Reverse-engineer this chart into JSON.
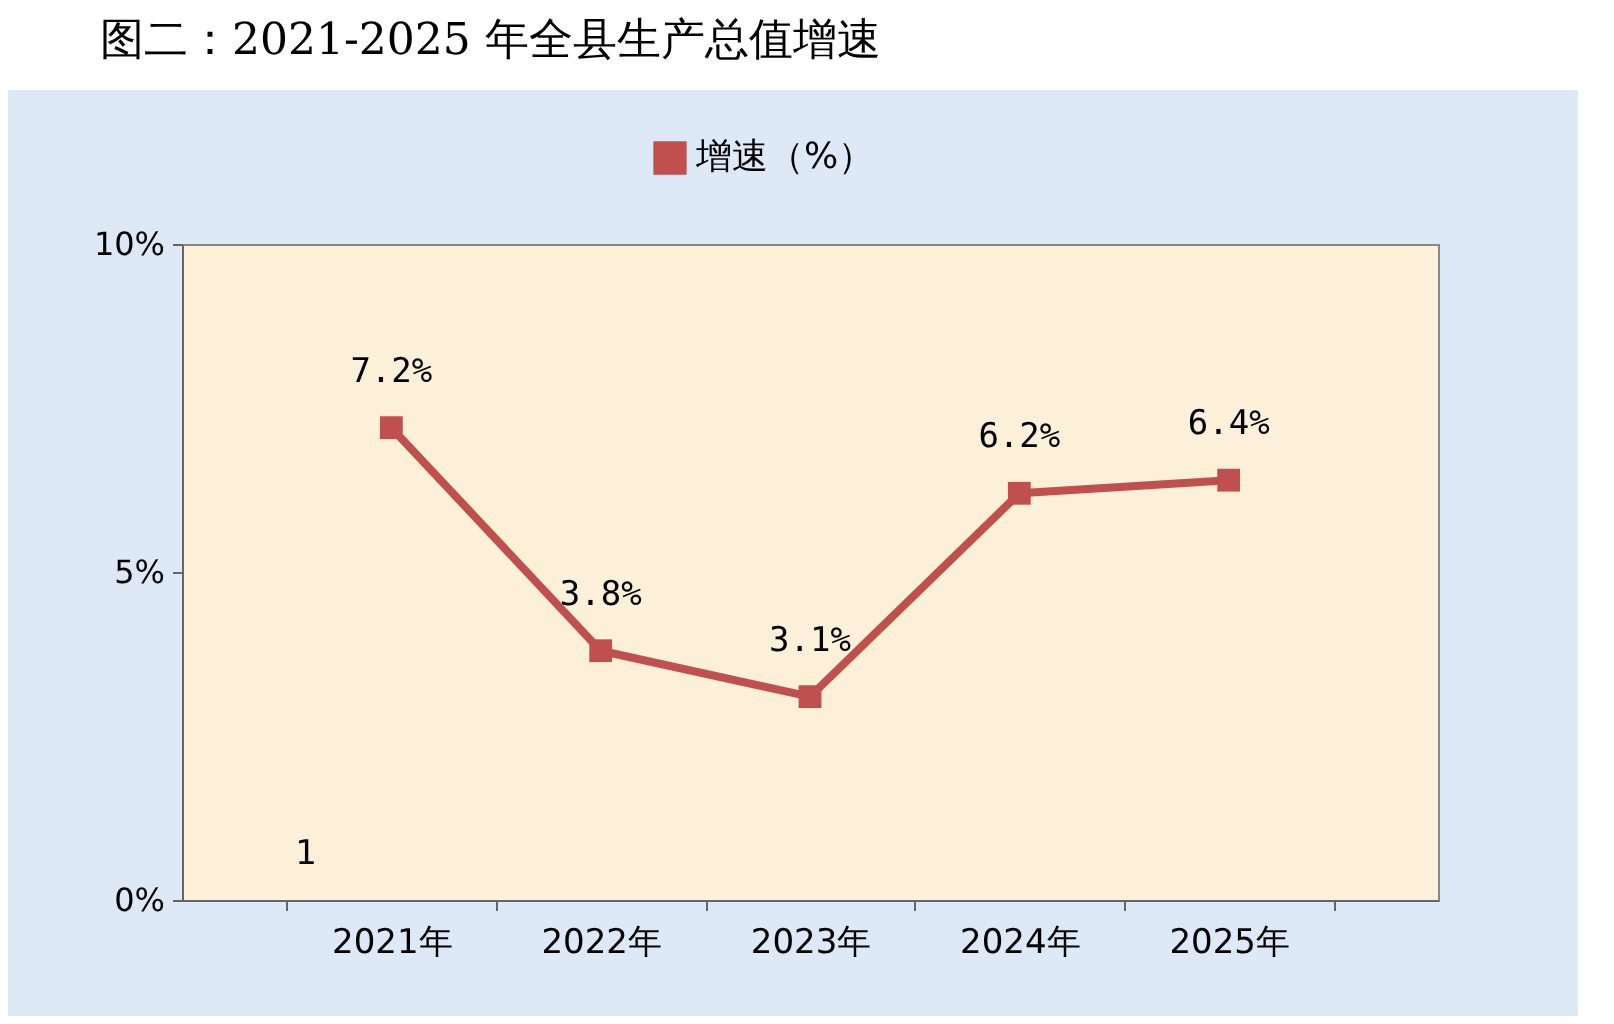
{
  "chart_data": {
    "type": "line",
    "title": "图二：2021-2025 年全县生产总值增速",
    "categories": [
      "2021年",
      "2022年",
      "2023年",
      "2024年",
      "2025年"
    ],
    "series": [
      {
        "name": "增速（%）",
        "color": "#c0504d",
        "values": [
          7.2,
          3.8,
          3.1,
          6.2,
          6.4
        ],
        "value_labels": [
          "7.2%",
          "3.8%",
          "3.1%",
          "6.2%",
          "6.4%"
        ]
      }
    ],
    "ylim": [
      0,
      10
    ],
    "yticks": [
      {
        "value": 0,
        "label": "0%"
      },
      {
        "value": 5,
        "label": "5%"
      },
      {
        "value": 10,
        "label": "10%"
      }
    ],
    "annotations": [
      "1"
    ],
    "marker": "square",
    "line_style": "solid",
    "grid": false,
    "legend": "top"
  }
}
